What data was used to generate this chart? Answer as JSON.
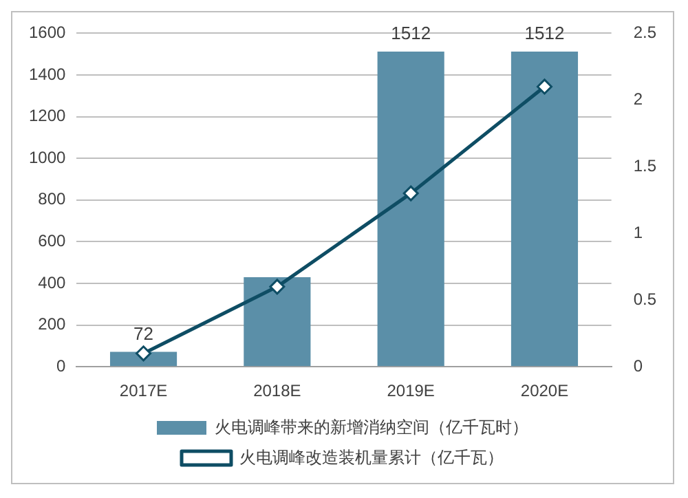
{
  "chart_data": {
    "type": "bar",
    "categories": [
      "2017E",
      "2018E",
      "2019E",
      "2020E"
    ],
    "series": [
      {
        "name": "火电调峰带来的新增消纳空间（亿千瓦时）",
        "color": "#5b8fa8",
        "values": [
          72,
          430,
          1512,
          1512
        ],
        "value_labels": [
          "72",
          null,
          "1512",
          "1512"
        ]
      },
      {
        "name": "火电调峰改造装机量累计（亿千瓦）",
        "type": "line",
        "axis": "y2",
        "color": "#0e4d64",
        "values": [
          0.1,
          0.6,
          1.3,
          2.1
        ],
        "marker": "diamond"
      }
    ],
    "ylim": [
      0,
      1600
    ],
    "yticks": [
      0,
      200,
      400,
      600,
      800,
      1000,
      1200,
      1400,
      1600
    ],
    "y2lim": [
      0,
      2.5
    ],
    "y2ticks": [
      0,
      0.5,
      1,
      1.5,
      2,
      2.5
    ],
    "grid": "y",
    "legend": "bottom"
  }
}
